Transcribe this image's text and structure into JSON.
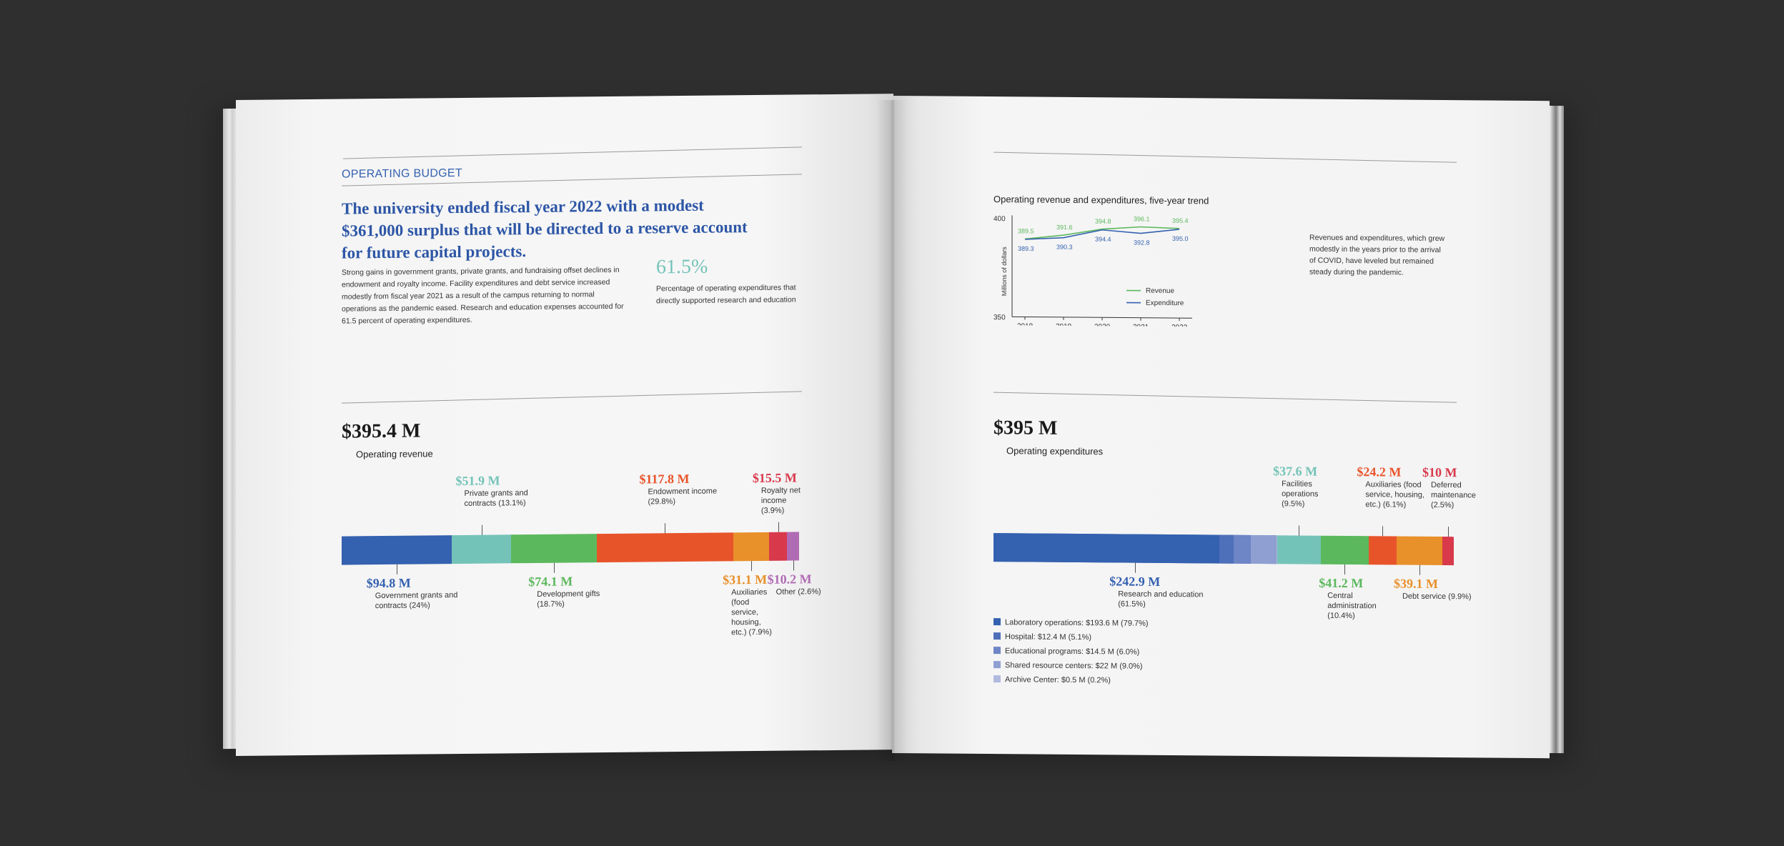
{
  "left_page": {
    "section_label": "OPERATING BUDGET",
    "headline": "The university ended fiscal year 2022 with a modest $361,000 surplus that will be directed to a reserve account for future capital projects.",
    "body": "Strong gains in government grants, private grants, and fundraising offset declines in endowment and royalty income. Facility expenditures and debt service increased modestly from fiscal year 2021 as a result of the campus returning to normal operations as the pandemic eased. Research and education expenses accounted for 61.5 percent of operating expenditures.",
    "stat_value": "61.5%",
    "stat_caption": "Percentage of operating expenditures that directly supported research and education",
    "revenue_total": "$395.4 M",
    "revenue_label": "Operating revenue",
    "revenue_segments": [
      {
        "amount": "$94.8 M",
        "label": "Government grants and contracts (24%)",
        "value": 24.0,
        "color": "#3461b0"
      },
      {
        "amount": "$51.9 M",
        "label": "Private grants and contracts (13.1%)",
        "value": 13.1,
        "color": "#74c3b8"
      },
      {
        "amount": "$74.1 M",
        "label": "Development gifts (18.7%)",
        "value": 18.7,
        "color": "#5cb85c"
      },
      {
        "amount": "$117.8 M",
        "label": "Endowment income (29.8%)",
        "value": 29.8,
        "color": "#e8542a"
      },
      {
        "amount": "$31.1 M",
        "label": "Auxiliaries (food service, housing, etc.) (7.9%)",
        "value": 7.9,
        "color": "#e8902a"
      },
      {
        "amount": "$15.5 M",
        "label": "Royalty net income (3.9%)",
        "value": 3.9,
        "color": "#d83a4c"
      },
      {
        "amount": "$10.2 M",
        "label": "Other (2.6%)",
        "value": 2.6,
        "color": "#b06bb5"
      }
    ]
  },
  "right_page": {
    "chart_title": "Operating revenue and expenditures, five-year trend",
    "chart_note": "Revenues and expenditures, which grew modestly in the years prior to the arrival of COVID, have leveled but remained steady during the pandemic.",
    "expenditure_total": "$395 M",
    "expenditure_label": "Operating expenditures",
    "expenditure_segments": [
      {
        "amount": "$242.9 M",
        "label": "Research and education (61.5%)",
        "value": 61.5,
        "color": "#3461b0"
      },
      {
        "amount": "$37.6 M",
        "label": "Facilities operations (9.5%)",
        "value": 9.5,
        "color": "#74c3b8"
      },
      {
        "amount": "$41.2 M",
        "label": "Central administration (10.4%)",
        "value": 10.4,
        "color": "#5cb85c"
      },
      {
        "amount": "$24.2 M",
        "label": "Auxiliaries (food service, housing, etc.) (6.1%)",
        "value": 6.1,
        "color": "#e8542a"
      },
      {
        "amount": "$39.1 M",
        "label": "Debt service (9.9%)",
        "value": 9.9,
        "color": "#e8902a"
      },
      {
        "amount": "$10 M",
        "label": "Deferred maintenance (2.5%)",
        "value": 2.5,
        "color": "#d83a4c"
      }
    ],
    "research_breakdown": [
      {
        "label": "Laboratory operations: $193.6 M (79.7%)",
        "value": 79.7,
        "color": "#3461b0"
      },
      {
        "label": "Hospital: $12.4 M (5.1%)",
        "value": 5.1,
        "color": "#4e6fba"
      },
      {
        "label": "Educational programs: $14.5 M (6.0%)",
        "value": 6.0,
        "color": "#6e85c6"
      },
      {
        "label": "Shared resource centers: $22 M (9.0%)",
        "value": 9.0,
        "color": "#8f9fd2"
      },
      {
        "label": "Archive Center: $0.5 M (0.2%)",
        "value": 0.2,
        "color": "#b0b9de"
      }
    ]
  },
  "chart_data": {
    "type": "line",
    "title": "Operating revenue and expenditures, five-year trend",
    "x": [
      "2018",
      "2019",
      "2020",
      "2021",
      "2022"
    ],
    "ylabel": "Millions of dollars",
    "ylim": [
      350,
      400
    ],
    "yticks": [
      "400",
      "350"
    ],
    "series": [
      {
        "name": "Revenue",
        "values": [
          389.5,
          391.6,
          394.8,
          396.1,
          395.4
        ],
        "labels": [
          "389.5",
          "391.6",
          "394.8",
          "396.1",
          "395.4"
        ],
        "color": "#5cb85c"
      },
      {
        "name": "Expenditure",
        "values": [
          389.3,
          390.3,
          394.4,
          392.8,
          395.0
        ],
        "labels": [
          "389.3",
          "390.3",
          "394.4",
          "392.8",
          "395.0"
        ],
        "color": "#3461b0"
      }
    ],
    "legend_position": "bottom-right"
  }
}
